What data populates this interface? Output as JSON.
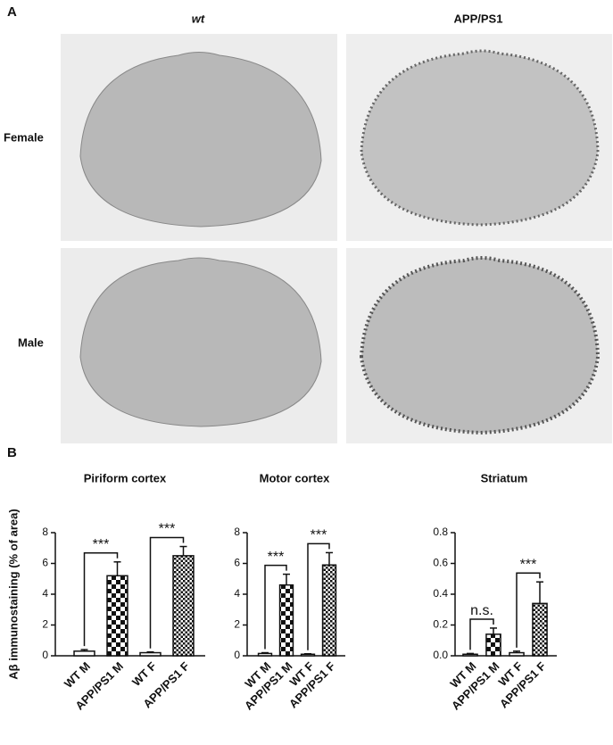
{
  "panel_a": {
    "label": "A",
    "columns": [
      "wt",
      "APP/PS1"
    ],
    "rows": [
      "Female",
      "Male"
    ]
  },
  "panel_b": {
    "label": "B",
    "ylabel": "Aβ immunostaining (% of area)"
  },
  "chart_data": [
    {
      "type": "bar",
      "title": "Piriform cortex",
      "categories": [
        "WT M",
        "APP/PS1 M",
        "WT F",
        "APP/PS1 F"
      ],
      "values": [
        0.3,
        5.2,
        0.2,
        6.5
      ],
      "errors": [
        0.1,
        0.9,
        0.05,
        0.6
      ],
      "ylim": [
        0,
        8
      ],
      "yticks": [
        0,
        2,
        4,
        6,
        8
      ],
      "annotations": [
        "***",
        "***"
      ]
    },
    {
      "type": "bar",
      "title": "Motor cortex",
      "categories": [
        "WT M",
        "APP/PS1 M",
        "WT F",
        "APP/PS1 F"
      ],
      "values": [
        0.15,
        4.6,
        0.1,
        5.9
      ],
      "errors": [
        0.05,
        0.7,
        0.03,
        0.8
      ],
      "ylim": [
        0,
        8
      ],
      "yticks": [
        0,
        2,
        4,
        6,
        8
      ],
      "annotations": [
        "***",
        "***"
      ]
    },
    {
      "type": "bar",
      "title": "Striatum",
      "categories": [
        "WT M",
        "APP/PS1 M",
        "WT F",
        "APP/PS1 F"
      ],
      "values": [
        0.01,
        0.14,
        0.02,
        0.34
      ],
      "errors": [
        0.005,
        0.04,
        0.01,
        0.14
      ],
      "ylim": [
        0,
        0.8
      ],
      "yticks": [
        {
          "value": 0,
          "label": "0.0"
        },
        0.2,
        0.4,
        0.6,
        0.8
      ],
      "annotations": [
        "n.s.",
        "***"
      ]
    }
  ]
}
